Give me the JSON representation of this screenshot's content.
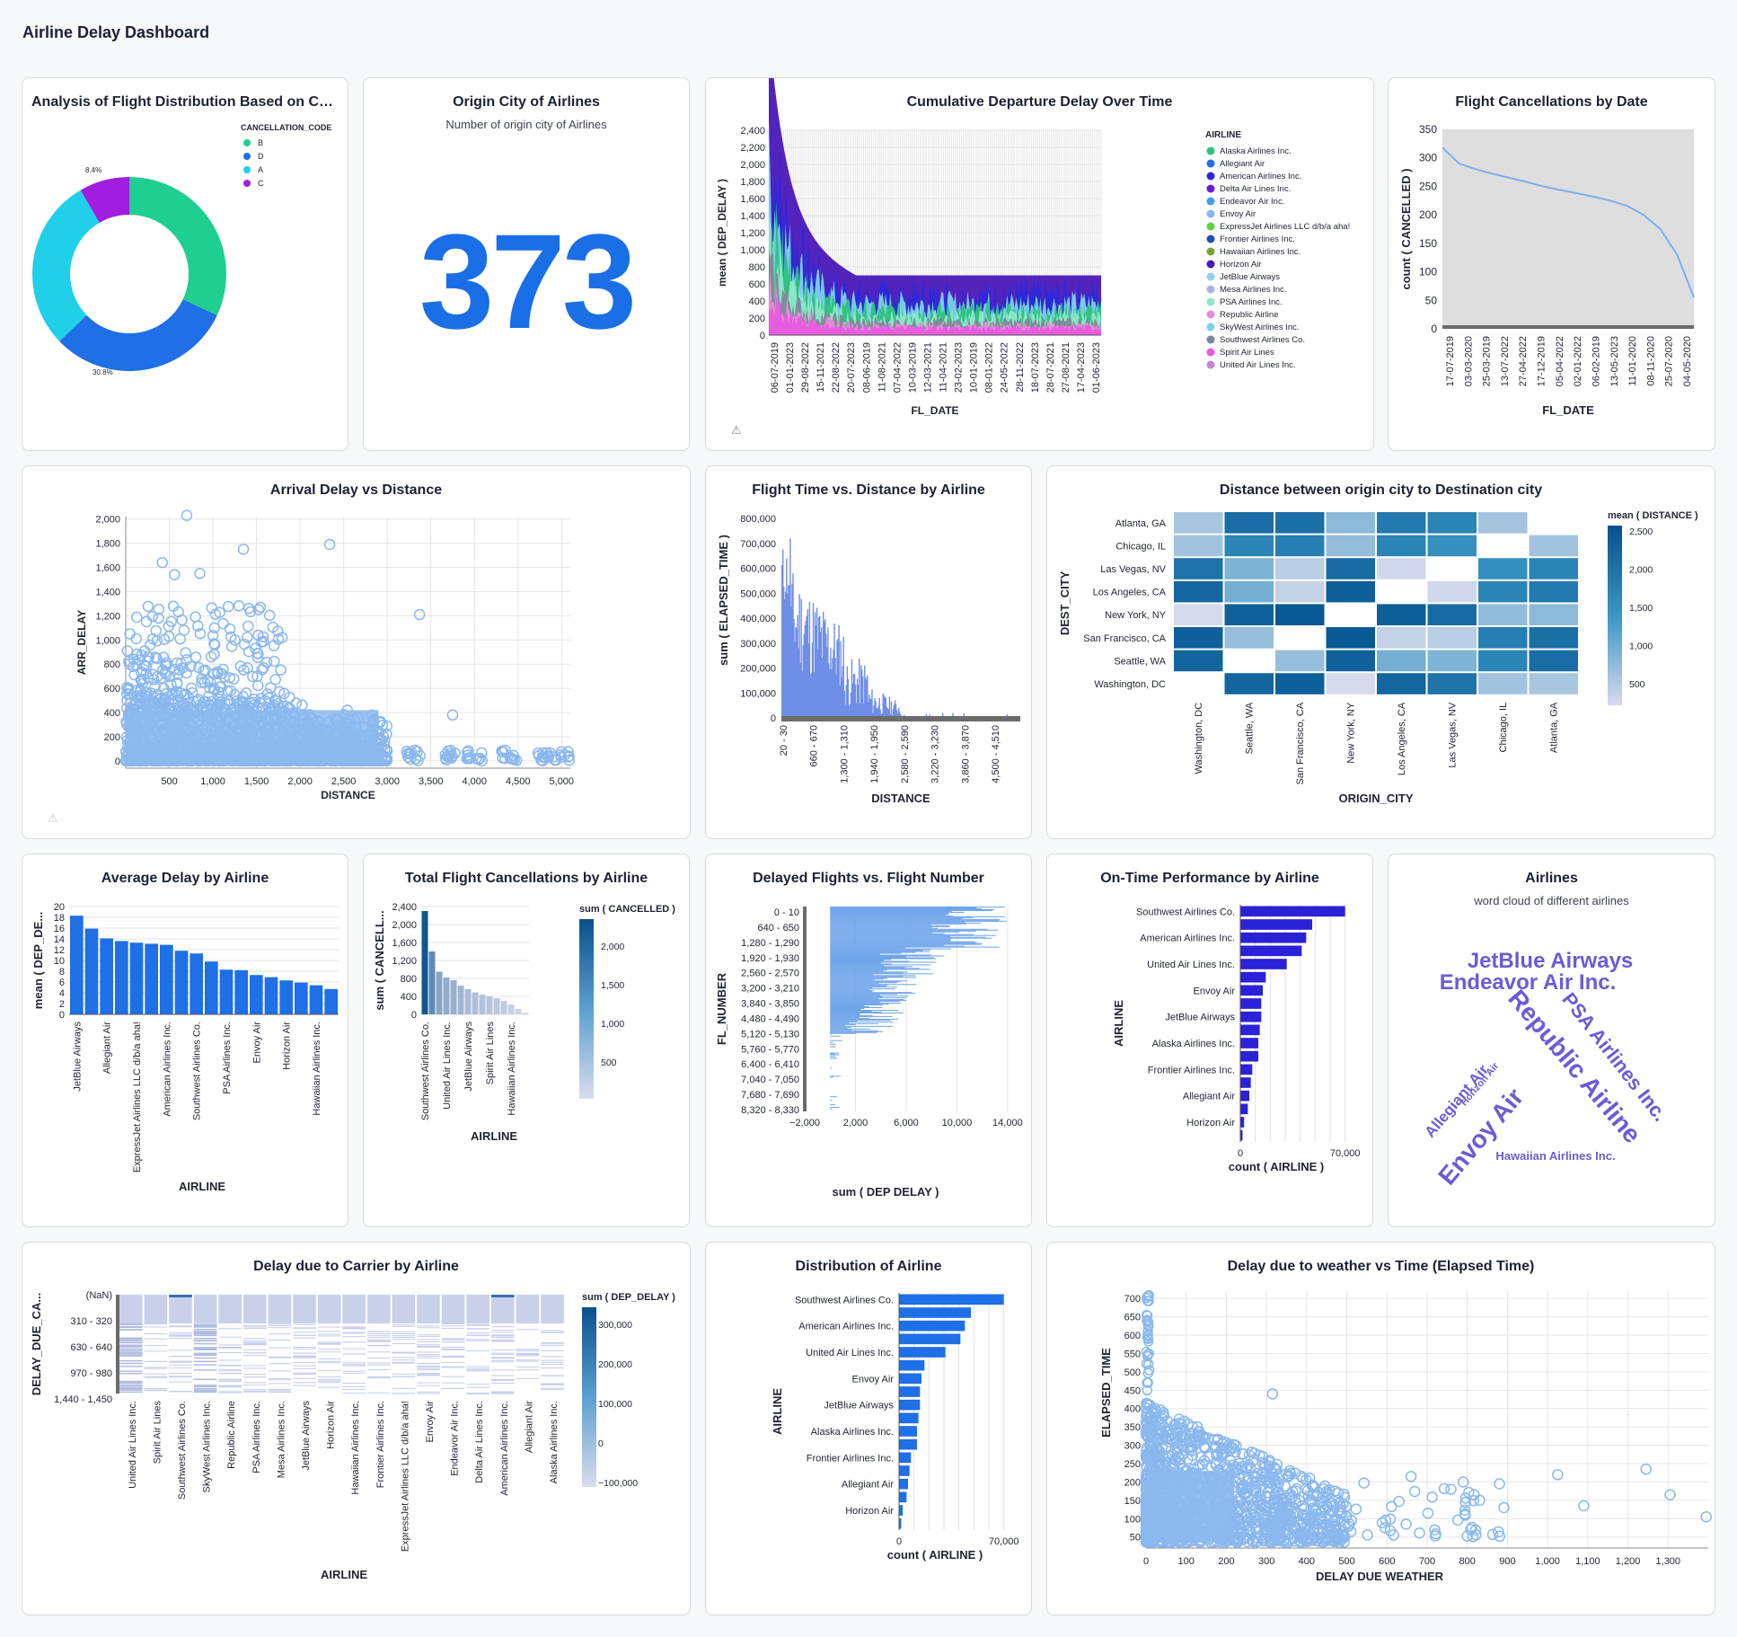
{
  "dashboard": {
    "title": "Airline Delay Dashboard"
  },
  "cards": {
    "donut": {
      "title": "Analysis of Flight Distribution Based on Co...",
      "legend_title": "CANCELLATION_CODE",
      "labels": [
        "8.4%",
        "30.8%"
      ]
    },
    "origin_count": {
      "title": "Origin City of Airlines",
      "subtitle": "Number of origin city of Airlines",
      "value": "373"
    },
    "cumulative": {
      "title": "Cumulative Departure Delay Over Time"
    },
    "cancel_date": {
      "title": "Flight Cancellations by Date"
    },
    "arr_scatter": {
      "title": "Arrival Delay vs Distance"
    },
    "flight_time": {
      "title": "Flight Time vs. Distance by Airline"
    },
    "heatmap": {
      "title": "Distance between origin city to Destination city"
    },
    "avg_delay": {
      "title": "Average Delay by Airline"
    },
    "total_cancel": {
      "title": "Total Flight Cancellations by Airline"
    },
    "delayed_fn": {
      "title": "Delayed Flights vs. Flight Number"
    },
    "ontime": {
      "title": "On-Time Performance by Airline"
    },
    "wordcloud": {
      "title": "Airlines",
      "subtitle": "word cloud of different airlines",
      "words": [
        "JetBlue Airways",
        "Endeavor Air Inc.",
        "Republic Airline",
        "PSA Airlines Inc.",
        "Envoy Air",
        "Allegiant Air",
        "Horizon Air",
        "Hawaiian Airlines Inc."
      ]
    },
    "carrier": {
      "title": "Delay due to Carrier by Airline"
    },
    "dist_airline": {
      "title": "Distribution of Airline"
    },
    "weather": {
      "title": "Delay due to weather vs Time (Elapsed Time)"
    }
  },
  "chart_data": [
    {
      "id": "donut",
      "type": "pie",
      "legend_title": "CANCELLATION_CODE",
      "legend_position": "top-right",
      "categories": [
        "B",
        "D",
        "A",
        "C"
      ],
      "values": [
        32.0,
        30.8,
        28.8,
        8.4
      ],
      "colors": [
        "#1fcf8f",
        "#1f6fe6",
        "#1fd0e8",
        "#a11ee0"
      ]
    },
    {
      "id": "cumulative",
      "type": "area",
      "xlabel": "FL_DATE",
      "ylabel": "mean ( DEP_DELAY )",
      "ylim": [
        0,
        2400
      ],
      "yticks": [
        0,
        200,
        400,
        600,
        800,
        1000,
        1200,
        1400,
        1600,
        1800,
        2000,
        2200,
        2400
      ],
      "yticklabels": [
        "0",
        "200",
        "400",
        "600",
        "800",
        "1,000",
        "1,200",
        "1,400",
        "1,600",
        "1,800",
        "2,000",
        "2,200",
        "2,400"
      ],
      "xticklabels": [
        "06-07-2019",
        "01-01-2023",
        "29-08-2022",
        "15-11-2021",
        "22-08-2022",
        "20-07-2023",
        "08-06-2019",
        "11-08-2021",
        "07-04-2022",
        "10-03-2019",
        "12-03-2021",
        "11-04-2021",
        "23-02-2023",
        "10-01-2019",
        "08-01-2022",
        "24-05-2022",
        "28-11-2022",
        "18-07-2023",
        "28-07-2021",
        "27-08-2021",
        "17-04-2023",
        "01-06-2023"
      ],
      "legend_title": "AIRLINE",
      "legend_position": "right",
      "series": [
        {
          "name": "Alaska Airlines Inc.",
          "color": "#2ec27e"
        },
        {
          "name": "Allegiant Air",
          "color": "#1f6fe6"
        },
        {
          "name": "American Airlines Inc.",
          "color": "#2a2adb"
        },
        {
          "name": "Delta Air Lines Inc.",
          "color": "#6a1fd6"
        },
        {
          "name": "Endeavor Air Inc.",
          "color": "#3aa0e8"
        },
        {
          "name": "Envoy Air",
          "color": "#8ab4f2"
        },
        {
          "name": "ExpressJet Airlines LLC d/b/a aha!",
          "color": "#5bd43c"
        },
        {
          "name": "Frontier Airlines Inc.",
          "color": "#1f4fb8"
        },
        {
          "name": "Hawaiian Airlines Inc.",
          "color": "#7aa335"
        },
        {
          "name": "Horizon Air",
          "color": "#4a18b8"
        },
        {
          "name": "JetBlue Airways",
          "color": "#8fd0f0"
        },
        {
          "name": "Mesa Airlines Inc.",
          "color": "#a8b4e8"
        },
        {
          "name": "PSA Airlines Inc.",
          "color": "#8ee8c8"
        },
        {
          "name": "Republic Airline",
          "color": "#e88ad8"
        },
        {
          "name": "SkyWest Airlines Inc.",
          "color": "#7ad4e8"
        },
        {
          "name": "Southwest Airlines Co.",
          "color": "#7a8a98"
        },
        {
          "name": "Spirit Air Lines",
          "color": "#e85ae0"
        },
        {
          "name": "United Air Lines Inc.",
          "color": "#c08ad0"
        }
      ]
    },
    {
      "id": "cancel_date",
      "type": "line",
      "xlabel": "FL_DATE",
      "ylabel": "count ( CANCELLED )",
      "ylim": [
        0,
        350
      ],
      "yticks": [
        0,
        50,
        100,
        150,
        200,
        250,
        300,
        350
      ],
      "xticklabels": [
        "17-07-2019",
        "03-03-2020",
        "25-03-2019",
        "13-07-2022",
        "27-04-2022",
        "17-12-2019",
        "05-04-2022",
        "02-01-2022",
        "06-02-2019",
        "13-05-2023",
        "11-01-2020",
        "08-11-2020",
        "25-07-2020",
        "04-05-2020"
      ],
      "values": [
        318,
        290,
        280,
        272,
        265,
        258,
        250,
        244,
        238,
        232,
        225,
        216,
        200,
        175,
        130,
        55
      ]
    },
    {
      "id": "arr_scatter",
      "type": "scatter",
      "xlabel": "DISTANCE",
      "ylabel": "ARR_DELAY",
      "xlim": [
        0,
        5100
      ],
      "ylim": [
        -60,
        2020
      ],
      "xticks": [
        500,
        1000,
        1500,
        2000,
        2500,
        3000,
        3500,
        4000,
        4500,
        5000
      ],
      "xticklabels": [
        "500",
        "1,000",
        "1,500",
        "2,000",
        "2,500",
        "3,000",
        "3,500",
        "4,000",
        "4,500",
        "5,000"
      ],
      "yticks": [
        0,
        200,
        400,
        600,
        800,
        1000,
        1200,
        1400,
        1600,
        1800,
        2000
      ],
      "yticklabels": [
        "0",
        "200",
        "400",
        "600",
        "800",
        "1,000",
        "1,200",
        "1,400",
        "1,600",
        "1,800",
        "2,000"
      ],
      "outliers": [
        [
          700,
          2030
        ],
        [
          1350,
          1750
        ],
        [
          2340,
          1790
        ],
        [
          420,
          1640
        ],
        [
          560,
          1540
        ],
        [
          850,
          1550
        ],
        [
          3370,
          1210
        ],
        [
          3750,
          380
        ]
      ]
    },
    {
      "id": "flight_time",
      "type": "bar",
      "xlabel": "DISTANCE",
      "ylabel": "sum ( ELAPSED_TIME )",
      "ylim": [
        0,
        800000
      ],
      "yticks": [
        0,
        100000,
        200000,
        300000,
        400000,
        500000,
        600000,
        700000,
        800000
      ],
      "yticklabels": [
        "0",
        "100,000",
        "200,000",
        "300,000",
        "400,000",
        "500,000",
        "600,000",
        "700,000",
        "800,000"
      ],
      "xticklabels": [
        "20 - 30",
        "660 - 670",
        "1,300 - 1,310",
        "1,940 - 1,950",
        "2,580 - 2,590",
        "3,220 - 3,230",
        "3,860 - 3,870",
        "4,500 - 4,510"
      ]
    },
    {
      "id": "heatmap",
      "type": "heatmap",
      "xlabel": "ORIGIN_CITY",
      "ylabel": "DEST_CITY",
      "legend_title": "mean ( DISTANCE )",
      "legend_ticks": [
        "2,500",
        "2,000",
        "1,500",
        "1,000",
        "500"
      ],
      "x": [
        "Washington, DC",
        "Seattle, WA",
        "San Francisco, CA",
        "New York, NY",
        "Los Angeles, CA",
        "Las Vegas, NV",
        "Chicago, IL",
        "Atlanta, GA"
      ],
      "y": [
        "Atlanta, GA",
        "Chicago, IL",
        "Las Vegas, NV",
        "Los Angeles, CA",
        "New York, NY",
        "San Francisco, CA",
        "Seattle, WA",
        "Washington, DC"
      ],
      "values": [
        [
          540,
          2180,
          2130,
          750,
          1940,
          1740,
          590,
          null
        ],
        [
          600,
          1720,
          1850,
          710,
          1740,
          1510,
          null,
          600
        ],
        [
          2070,
          870,
          410,
          2230,
          230,
          null,
          1520,
          1740
        ],
        [
          2310,
          950,
          340,
          2470,
          null,
          240,
          1740,
          1940
        ],
        [
          200,
          2420,
          2580,
          null,
          2470,
          2230,
          720,
          750
        ],
        [
          2440,
          680,
          null,
          2580,
          340,
          410,
          1850,
          2130
        ],
        [
          2330,
          null,
          680,
          2420,
          950,
          870,
          1720,
          2180
        ],
        [
          null,
          2330,
          2440,
          200,
          2310,
          2070,
          600,
          540
        ]
      ]
    },
    {
      "id": "avg_delay",
      "type": "bar",
      "xlabel": "AIRLINE",
      "ylabel": "mean ( DEP_DE...",
      "ylim": [
        0,
        20
      ],
      "yticks": [
        0,
        2,
        4,
        6,
        8,
        10,
        12,
        14,
        16,
        18,
        20
      ],
      "categories": [
        "JetBlue Airways",
        "",
        "Allegiant Air",
        "",
        "ExpressJet Airlines LLC d/b/a aha!",
        "",
        "American Airlines Inc.",
        "",
        "Southwest Airlines Co.",
        "",
        "PSA Airlines Inc.",
        "",
        "Envoy Air",
        "",
        "Horizon Air",
        "",
        "Hawaiian Airlines Inc.",
        ""
      ],
      "values": [
        18.3,
        15.9,
        14.1,
        13.6,
        13.3,
        13.1,
        12.9,
        11.8,
        11.3,
        9.8,
        8.3,
        8.2,
        7.3,
        6.9,
        6.3,
        5.9,
        5.4,
        4.7
      ],
      "color": "#1f6fe6"
    },
    {
      "id": "total_cancel",
      "type": "bar",
      "xlabel": "AIRLINE",
      "ylabel": "sum ( CANCELL...",
      "legend_title": "sum ( CANCELLED )",
      "legend_ticks": [
        "2,000",
        "1,500",
        "1,000",
        "500"
      ],
      "ylim": [
        0,
        2400
      ],
      "yticks": [
        0,
        400,
        800,
        1200,
        1600,
        2000,
        2400
      ],
      "yticklabels": [
        "0",
        "400",
        "800",
        "1,200",
        "1,600",
        "2,000",
        "2,400"
      ],
      "categories": [
        "Southwest Airlines Co.",
        "",
        "",
        "United Air Lines Inc.",
        "",
        "",
        "JetBlue Airways",
        "",
        "",
        "Spirit Air Lines",
        "",
        "",
        "Hawaiian Airlines Inc.",
        "",
        ""
      ],
      "values": [
        2300,
        1400,
        950,
        820,
        760,
        640,
        560,
        490,
        440,
        400,
        360,
        300,
        220,
        120,
        40
      ]
    },
    {
      "id": "delayed_fn",
      "type": "bar",
      "orientation": "horizontal",
      "xlabel": "sum ( DEP  DELAY )",
      "ylabel": "FL_NUMBER",
      "xlim": [
        -2000,
        15000
      ],
      "xticks": [
        -2000,
        2000,
        6000,
        10000,
        14000
      ],
      "xticklabels": [
        "−2,000",
        "2,000",
        "6,000",
        "10,000",
        "14,000"
      ],
      "categories": [
        "0 - 10",
        "640 - 650",
        "1,280 - 1,290",
        "1,920 - 1,930",
        "2,560 - 2,570",
        "3,200 - 3,210",
        "3,840 - 3,850",
        "4,480 - 4,490",
        "5,120 - 5,130",
        "5,760 - 5,770",
        "6,400 - 6,410",
        "7,040 - 7,050",
        "7,680 - 7,690",
        "8,320 - 8,330"
      ]
    },
    {
      "id": "ontime",
      "type": "bar",
      "orientation": "horizontal",
      "xlabel": "count ( AIRLINE )",
      "ylabel": "AIRLINE",
      "xlim": [
        0,
        72000
      ],
      "xticklabels": [
        "0",
        "70,000"
      ],
      "categories": [
        "Southwest Airlines Co.",
        "",
        "American Airlines Inc.",
        "",
        "United Air Lines Inc.",
        "",
        "Envoy Air",
        "",
        "JetBlue Airways",
        "",
        "Alaska Airlines Inc.",
        "",
        "Frontier Airlines Inc.",
        "",
        "Allegiant Air",
        "",
        "Horizon Air",
        ""
      ],
      "values": [
        70000,
        48000,
        44000,
        41000,
        31000,
        17000,
        15000,
        14000,
        14000,
        13000,
        12000,
        12000,
        8000,
        7000,
        6000,
        5000,
        2500,
        1500
      ],
      "color": "#2a22d6"
    },
    {
      "id": "carrier",
      "type": "heatmap",
      "xlabel": "AIRLINE",
      "ylabel": "DELAY_DUE_CA...",
      "legend_title": "sum ( DEP_DELAY )",
      "legend_ticks": [
        "300,000",
        "200,000",
        "100,000",
        "0",
        "−100,000"
      ],
      "yticklabels": [
        "(NaN)",
        "310 - 320",
        "630 - 640",
        "970 - 980",
        "1,440 - 1,450"
      ],
      "x": [
        "United Air Lines Inc.",
        "Spirit Air Lines",
        "Southwest Airlines Co.",
        "SkyWest Airlines Inc.",
        "Republic Airline",
        "PSA Airlines Inc.",
        "Mesa Airlines Inc.",
        "JetBlue Airways",
        "Horizon Air",
        "Hawaiian Airlines Inc.",
        "Frontier Airlines Inc.",
        "ExpressJet Airlines LLC d/b/a aha!",
        "Envoy Air",
        "Endeavor Air Inc.",
        "Delta Air Lines Inc.",
        "American Airlines Inc.",
        "Allegiant Air",
        "Alaska Airlines Inc."
      ]
    },
    {
      "id": "dist_airline",
      "type": "bar",
      "orientation": "horizontal",
      "xlabel": "count ( AIRLINE )",
      "ylabel": "AIRLINE",
      "xlim": [
        0,
        72000
      ],
      "xticklabels": [
        "0",
        "70,000"
      ],
      "categories": [
        "Southwest Airlines Co.",
        "",
        "American Airlines Inc.",
        "",
        "United Air Lines Inc.",
        "",
        "Envoy Air",
        "",
        "JetBlue Airways",
        "",
        "Alaska Airlines Inc.",
        "",
        "Frontier Airlines Inc.",
        "",
        "Allegiant Air",
        "",
        "Horizon Air",
        ""
      ],
      "values": [
        70000,
        48000,
        44000,
        41000,
        31000,
        17000,
        15000,
        14000,
        14000,
        13000,
        12000,
        12000,
        8000,
        7000,
        6000,
        5000,
        2500,
        1500
      ],
      "color": "#1f6fe6"
    },
    {
      "id": "weather",
      "type": "scatter",
      "xlabel": "DELAY  DUE  WEATHER",
      "ylabel": "ELAPSED_TIME",
      "xlim": [
        0,
        1400
      ],
      "ylim": [
        20,
        720
      ],
      "xticks": [
        0,
        100,
        200,
        300,
        400,
        500,
        600,
        700,
        800,
        900,
        1000,
        1100,
        1200,
        1300
      ],
      "xticklabels": [
        "0",
        "100",
        "200",
        "300",
        "400",
        "500",
        "600",
        "700",
        "800",
        "900",
        "1,000",
        "1,100",
        "1,200",
        "1,300"
      ],
      "yticks": [
        50,
        100,
        150,
        200,
        250,
        300,
        350,
        400,
        450,
        500,
        550,
        600,
        650,
        700
      ],
      "outliers": [
        [
          1245,
          235
        ],
        [
          1395,
          105
        ],
        [
          1305,
          165
        ],
        [
          1025,
          220
        ],
        [
          1090,
          135
        ],
        [
          315,
          440
        ],
        [
          470,
          175
        ],
        [
          790,
          200
        ],
        [
          660,
          215
        ],
        [
          880,
          195
        ]
      ]
    }
  ]
}
